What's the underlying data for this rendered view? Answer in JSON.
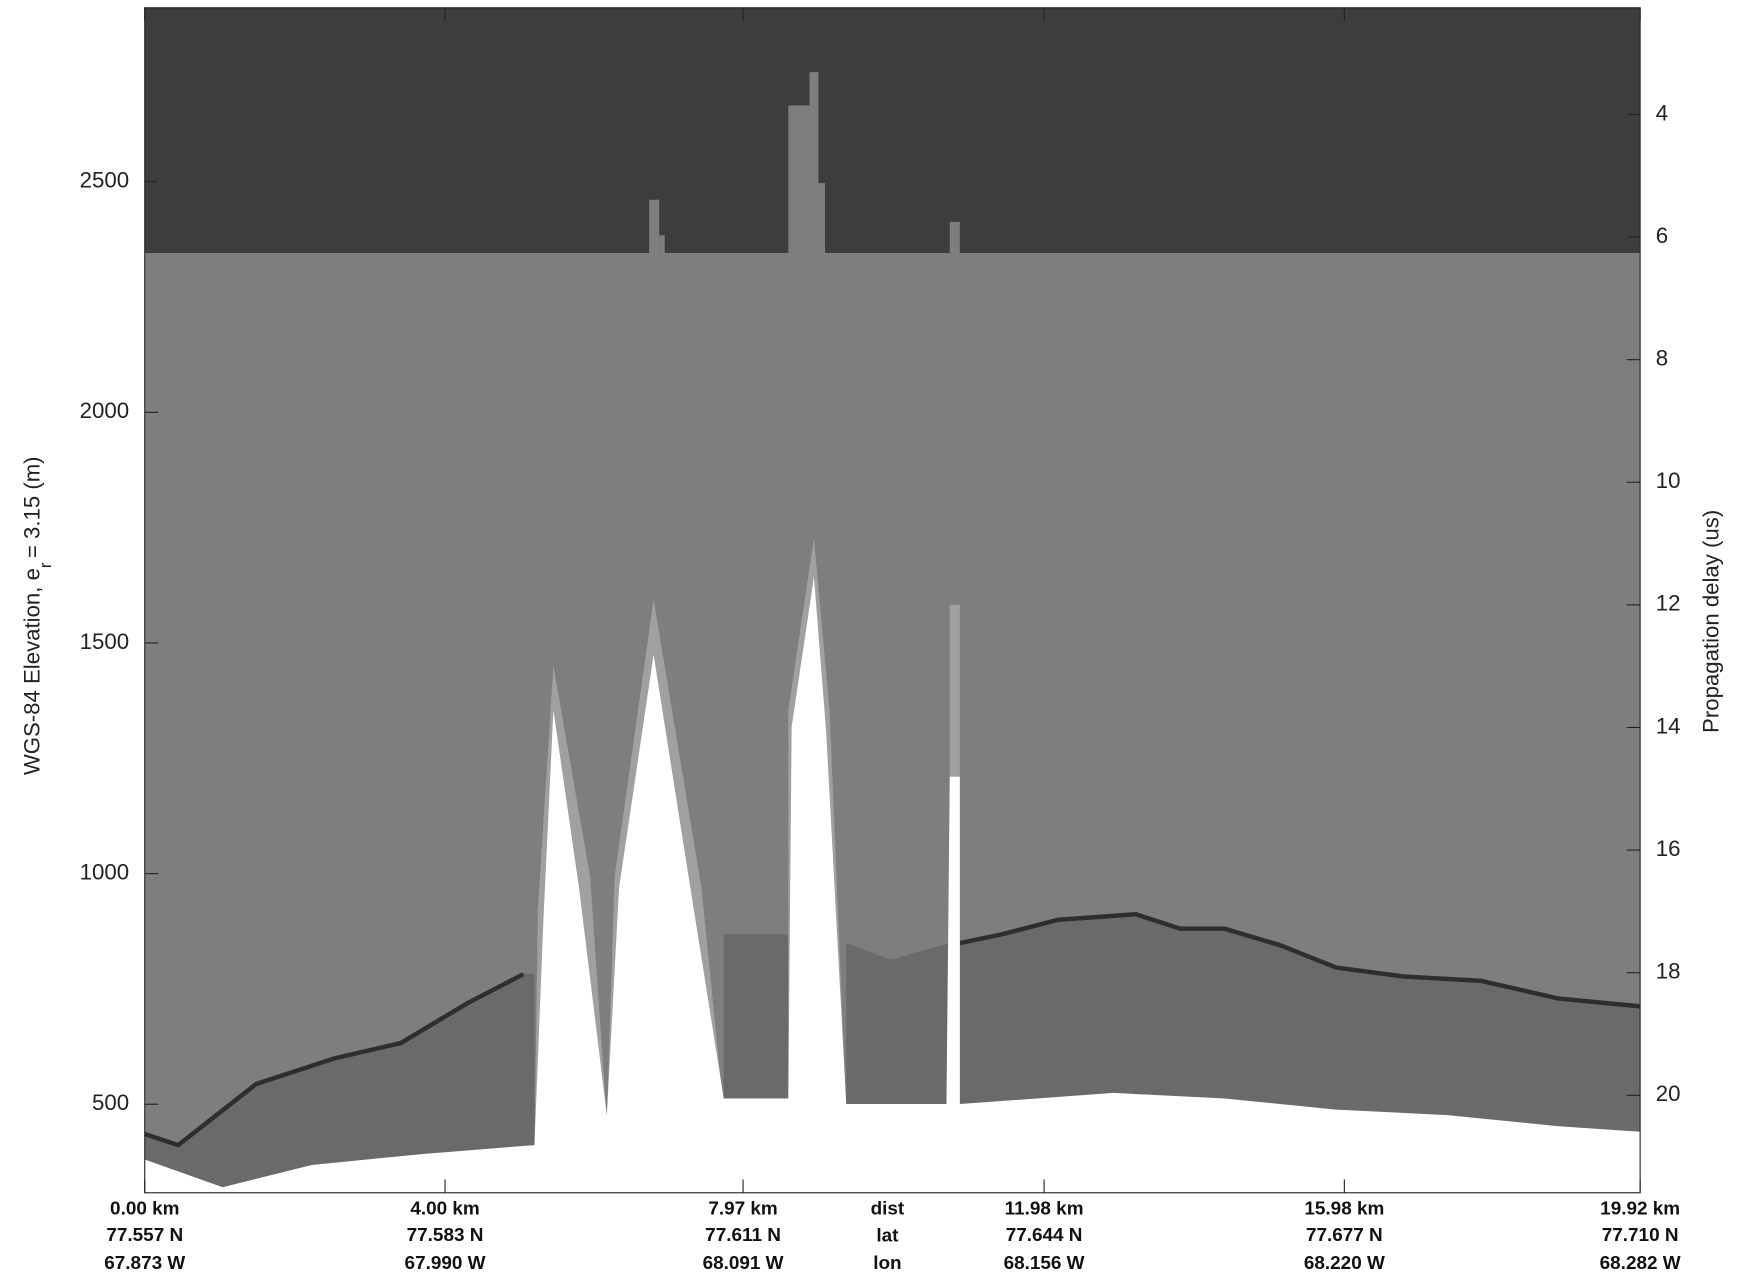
{
  "chart_data": {
    "type": "radargram",
    "y_label": "WGS-84 Elevation, e",
    "y_label_subscript": "r",
    "y_label_suffix": "= 3.15 (m)",
    "y2_label": "Propagation delay (us)",
    "ylim": [
      308,
      2877
    ],
    "yticks": [
      500,
      1000,
      1500,
      2000,
      2500
    ],
    "y2lim": [
      2.26,
      21.59
    ],
    "y2_inverted": true,
    "y2ticks": [
      4,
      6,
      8,
      10,
      12,
      14,
      16,
      18,
      20
    ],
    "xlim": [
      0,
      19.92
    ],
    "xticks": [
      {
        "value": 0,
        "label": "0.00 km"
      },
      {
        "value": 4.0,
        "label": "4.00 km"
      },
      {
        "value": 7.97,
        "label": "7.97 km"
      },
      {
        "value": 11.98,
        "label": "11.98 km"
      },
      {
        "value": 15.98,
        "label": "15.98 km"
      },
      {
        "value": 19.92,
        "label": "19.92 km"
      }
    ],
    "lat_labels": [
      "77.557 N",
      "77.583 N",
      "77.611 N",
      "77.644 N",
      "77.677 N",
      "77.710 N"
    ],
    "lon_labels": [
      "67.873 W",
      "67.990 W",
      "68.091 W",
      "68.156 W",
      "68.220 W",
      "68.282 W"
    ],
    "x_row_labels": [
      "dist",
      "lat",
      "lon"
    ]
  }
}
